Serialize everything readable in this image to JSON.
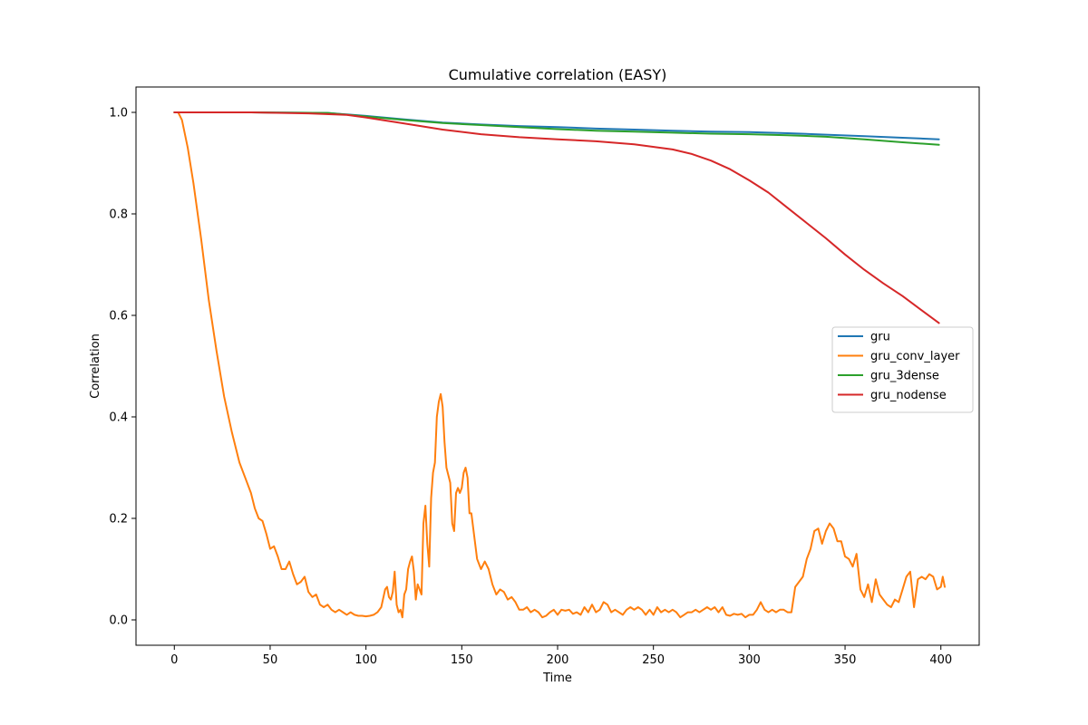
{
  "chart_data": {
    "type": "line",
    "title": "Cumulative correlation (EASY)",
    "xlabel": "Time",
    "ylabel": "Correlation",
    "xlim": [
      -20,
      420
    ],
    "ylim": [
      -0.05,
      1.05
    ],
    "xticks": [
      0,
      50,
      100,
      150,
      200,
      250,
      300,
      350,
      400
    ],
    "yticks": [
      0.0,
      0.2,
      0.4,
      0.6,
      0.8,
      1.0
    ],
    "ytick_labels": [
      "0.0",
      "0.2",
      "0.4",
      "0.6",
      "0.8",
      "1.0"
    ],
    "grid": false,
    "legend_position": "center-right",
    "series": [
      {
        "name": "gru",
        "color": "#1f77b4",
        "points": [
          [
            0,
            1.0
          ],
          [
            40,
            1.0
          ],
          [
            80,
            0.999
          ],
          [
            100,
            0.993
          ],
          [
            120,
            0.986
          ],
          [
            140,
            0.98
          ],
          [
            160,
            0.976
          ],
          [
            180,
            0.973
          ],
          [
            200,
            0.971
          ],
          [
            220,
            0.968
          ],
          [
            240,
            0.966
          ],
          [
            260,
            0.964
          ],
          [
            280,
            0.962
          ],
          [
            300,
            0.961
          ],
          [
            320,
            0.959
          ],
          [
            340,
            0.956
          ],
          [
            360,
            0.953
          ],
          [
            380,
            0.95
          ],
          [
            399,
            0.947
          ]
        ]
      },
      {
        "name": "gru_conv_layer",
        "color": "#ff7f0e",
        "points": [
          [
            0,
            1.0
          ],
          [
            2,
            1.0
          ],
          [
            4,
            0.985
          ],
          [
            7,
            0.93
          ],
          [
            10,
            0.86
          ],
          [
            14,
            0.75
          ],
          [
            18,
            0.63
          ],
          [
            22,
            0.53
          ],
          [
            26,
            0.44
          ],
          [
            30,
            0.37
          ],
          [
            34,
            0.31
          ],
          [
            38,
            0.27
          ],
          [
            40,
            0.25
          ],
          [
            42,
            0.22
          ],
          [
            44,
            0.2
          ],
          [
            46,
            0.195
          ],
          [
            48,
            0.17
          ],
          [
            50,
            0.14
          ],
          [
            52,
            0.145
          ],
          [
            54,
            0.125
          ],
          [
            56,
            0.1
          ],
          [
            58,
            0.1
          ],
          [
            60,
            0.115
          ],
          [
            62,
            0.09
          ],
          [
            64,
            0.07
          ],
          [
            66,
            0.075
          ],
          [
            68,
            0.085
          ],
          [
            70,
            0.055
          ],
          [
            72,
            0.045
          ],
          [
            74,
            0.05
          ],
          [
            76,
            0.03
          ],
          [
            78,
            0.025
          ],
          [
            80,
            0.03
          ],
          [
            82,
            0.02
          ],
          [
            84,
            0.015
          ],
          [
            86,
            0.02
          ],
          [
            88,
            0.015
          ],
          [
            90,
            0.01
          ],
          [
            92,
            0.015
          ],
          [
            94,
            0.01
          ],
          [
            96,
            0.008
          ],
          [
            98,
            0.008
          ],
          [
            100,
            0.007
          ],
          [
            102,
            0.008
          ],
          [
            104,
            0.01
          ],
          [
            106,
            0.015
          ],
          [
            108,
            0.025
          ],
          [
            110,
            0.06
          ],
          [
            111,
            0.065
          ],
          [
            112,
            0.045
          ],
          [
            113,
            0.04
          ],
          [
            114,
            0.055
          ],
          [
            115,
            0.095
          ],
          [
            116,
            0.03
          ],
          [
            117,
            0.015
          ],
          [
            118,
            0.02
          ],
          [
            119,
            0.005
          ],
          [
            120,
            0.05
          ],
          [
            121,
            0.06
          ],
          [
            122,
            0.1
          ],
          [
            123,
            0.115
          ],
          [
            124,
            0.125
          ],
          [
            125,
            0.095
          ],
          [
            126,
            0.04
          ],
          [
            127,
            0.07
          ],
          [
            128,
            0.06
          ],
          [
            129,
            0.05
          ],
          [
            130,
            0.19
          ],
          [
            131,
            0.225
          ],
          [
            132,
            0.15
          ],
          [
            133,
            0.105
          ],
          [
            134,
            0.24
          ],
          [
            135,
            0.29
          ],
          [
            136,
            0.31
          ],
          [
            137,
            0.4
          ],
          [
            138,
            0.43
          ],
          [
            139,
            0.445
          ],
          [
            140,
            0.42
          ],
          [
            141,
            0.35
          ],
          [
            142,
            0.3
          ],
          [
            143,
            0.285
          ],
          [
            144,
            0.27
          ],
          [
            145,
            0.19
          ],
          [
            146,
            0.175
          ],
          [
            147,
            0.25
          ],
          [
            148,
            0.26
          ],
          [
            149,
            0.25
          ],
          [
            150,
            0.26
          ],
          [
            151,
            0.29
          ],
          [
            152,
            0.3
          ],
          [
            153,
            0.28
          ],
          [
            154,
            0.21
          ],
          [
            155,
            0.21
          ],
          [
            156,
            0.18
          ],
          [
            157,
            0.15
          ],
          [
            158,
            0.12
          ],
          [
            160,
            0.1
          ],
          [
            162,
            0.115
          ],
          [
            164,
            0.1
          ],
          [
            166,
            0.07
          ],
          [
            168,
            0.05
          ],
          [
            170,
            0.06
          ],
          [
            172,
            0.055
          ],
          [
            174,
            0.04
          ],
          [
            176,
            0.045
          ],
          [
            178,
            0.035
          ],
          [
            180,
            0.02
          ],
          [
            182,
            0.02
          ],
          [
            184,
            0.025
          ],
          [
            186,
            0.015
          ],
          [
            188,
            0.02
          ],
          [
            190,
            0.015
          ],
          [
            192,
            0.005
          ],
          [
            194,
            0.008
          ],
          [
            196,
            0.015
          ],
          [
            198,
            0.02
          ],
          [
            200,
            0.01
          ],
          [
            202,
            0.02
          ],
          [
            204,
            0.018
          ],
          [
            206,
            0.02
          ],
          [
            208,
            0.012
          ],
          [
            210,
            0.015
          ],
          [
            212,
            0.01
          ],
          [
            214,
            0.025
          ],
          [
            216,
            0.015
          ],
          [
            218,
            0.03
          ],
          [
            220,
            0.015
          ],
          [
            222,
            0.02
          ],
          [
            224,
            0.035
          ],
          [
            226,
            0.03
          ],
          [
            228,
            0.015
          ],
          [
            230,
            0.02
          ],
          [
            232,
            0.015
          ],
          [
            234,
            0.01
          ],
          [
            236,
            0.02
          ],
          [
            238,
            0.025
          ],
          [
            240,
            0.02
          ],
          [
            242,
            0.025
          ],
          [
            244,
            0.02
          ],
          [
            246,
            0.01
          ],
          [
            248,
            0.02
          ],
          [
            250,
            0.01
          ],
          [
            252,
            0.025
          ],
          [
            254,
            0.015
          ],
          [
            256,
            0.02
          ],
          [
            258,
            0.015
          ],
          [
            260,
            0.02
          ],
          [
            262,
            0.015
          ],
          [
            264,
            0.005
          ],
          [
            266,
            0.01
          ],
          [
            268,
            0.015
          ],
          [
            270,
            0.015
          ],
          [
            272,
            0.02
          ],
          [
            274,
            0.015
          ],
          [
            276,
            0.02
          ],
          [
            278,
            0.025
          ],
          [
            280,
            0.02
          ],
          [
            282,
            0.025
          ],
          [
            284,
            0.015
          ],
          [
            286,
            0.025
          ],
          [
            288,
            0.01
          ],
          [
            290,
            0.008
          ],
          [
            292,
            0.012
          ],
          [
            294,
            0.01
          ],
          [
            296,
            0.012
          ],
          [
            298,
            0.005
          ],
          [
            300,
            0.01
          ],
          [
            302,
            0.01
          ],
          [
            304,
            0.02
          ],
          [
            306,
            0.035
          ],
          [
            308,
            0.02
          ],
          [
            310,
            0.015
          ],
          [
            312,
            0.02
          ],
          [
            314,
            0.015
          ],
          [
            316,
            0.02
          ],
          [
            318,
            0.02
          ],
          [
            320,
            0.015
          ],
          [
            322,
            0.015
          ],
          [
            324,
            0.065
          ],
          [
            326,
            0.075
          ],
          [
            328,
            0.085
          ],
          [
            330,
            0.12
          ],
          [
            332,
            0.14
          ],
          [
            334,
            0.175
          ],
          [
            336,
            0.18
          ],
          [
            338,
            0.15
          ],
          [
            340,
            0.175
          ],
          [
            342,
            0.19
          ],
          [
            344,
            0.18
          ],
          [
            346,
            0.155
          ],
          [
            348,
            0.155
          ],
          [
            350,
            0.125
          ],
          [
            352,
            0.12
          ],
          [
            354,
            0.105
          ],
          [
            356,
            0.13
          ],
          [
            358,
            0.06
          ],
          [
            360,
            0.045
          ],
          [
            362,
            0.07
          ],
          [
            364,
            0.035
          ],
          [
            366,
            0.08
          ],
          [
            368,
            0.05
          ],
          [
            370,
            0.04
          ],
          [
            372,
            0.03
          ],
          [
            374,
            0.025
          ],
          [
            376,
            0.04
          ],
          [
            378,
            0.035
          ],
          [
            380,
            0.06
          ],
          [
            382,
            0.085
          ],
          [
            384,
            0.095
          ],
          [
            386,
            0.025
          ],
          [
            388,
            0.08
          ],
          [
            390,
            0.085
          ],
          [
            392,
            0.08
          ],
          [
            394,
            0.09
          ],
          [
            396,
            0.085
          ],
          [
            398,
            0.06
          ],
          [
            400,
            0.065
          ],
          [
            401,
            0.085
          ],
          [
            402,
            0.065
          ]
        ]
      },
      {
        "name": "gru_3dense",
        "color": "#2ca02c",
        "points": [
          [
            0,
            1.0
          ],
          [
            40,
            1.0
          ],
          [
            80,
            0.999
          ],
          [
            100,
            0.992
          ],
          [
            120,
            0.985
          ],
          [
            140,
            0.979
          ],
          [
            160,
            0.975
          ],
          [
            180,
            0.971
          ],
          [
            200,
            0.967
          ],
          [
            220,
            0.964
          ],
          [
            240,
            0.962
          ],
          [
            260,
            0.96
          ],
          [
            280,
            0.958
          ],
          [
            300,
            0.957
          ],
          [
            320,
            0.955
          ],
          [
            340,
            0.952
          ],
          [
            360,
            0.947
          ],
          [
            380,
            0.941
          ],
          [
            399,
            0.936
          ]
        ]
      },
      {
        "name": "gru_nodense",
        "color": "#d62728",
        "points": [
          [
            0,
            1.0
          ],
          [
            40,
            1.0
          ],
          [
            70,
            0.998
          ],
          [
            90,
            0.995
          ],
          [
            100,
            0.99
          ],
          [
            120,
            0.978
          ],
          [
            140,
            0.966
          ],
          [
            160,
            0.957
          ],
          [
            180,
            0.951
          ],
          [
            200,
            0.947
          ],
          [
            220,
            0.943
          ],
          [
            240,
            0.937
          ],
          [
            260,
            0.927
          ],
          [
            270,
            0.918
          ],
          [
            280,
            0.905
          ],
          [
            290,
            0.888
          ],
          [
            300,
            0.866
          ],
          [
            310,
            0.842
          ],
          [
            320,
            0.812
          ],
          [
            330,
            0.782
          ],
          [
            340,
            0.752
          ],
          [
            350,
            0.72
          ],
          [
            360,
            0.69
          ],
          [
            370,
            0.663
          ],
          [
            380,
            0.638
          ],
          [
            390,
            0.61
          ],
          [
            399,
            0.585
          ]
        ]
      }
    ]
  }
}
